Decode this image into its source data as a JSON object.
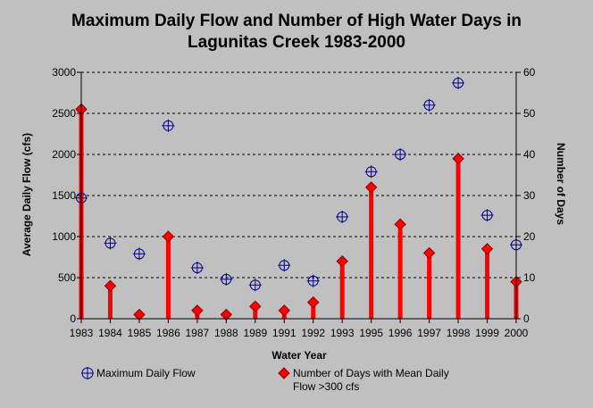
{
  "chart_data": {
    "type": "bar+scatter",
    "title": "Maximum Daily Flow and Number of High Water Days in Lagunitas Creek 1983-2000",
    "title_lines": [
      "Maximum Daily Flow and Number of High Water Days in",
      "Lagunitas Creek 1983-2000"
    ],
    "xlabel": "Water Year",
    "ylabel_left": "Average Daily Flow (cfs)",
    "ylabel_right": "Number of Days",
    "categories": [
      "1983",
      "1984",
      "1985",
      "1986",
      "1987",
      "1988",
      "1989",
      "1991",
      "1992",
      "1993",
      "1995",
      "1996",
      "1997",
      "1998",
      "1999",
      "2000"
    ],
    "ylim_left": [
      0,
      3000
    ],
    "yticks_left": [
      "0",
      "500",
      "1000",
      "1500",
      "2000",
      "2500",
      "3000"
    ],
    "ylim_right": [
      0,
      60
    ],
    "yticks_right": [
      "0",
      "10",
      "20",
      "30",
      "40",
      "50",
      "60"
    ],
    "grid": "horizontal-dashed",
    "series": [
      {
        "name": "Maximum Daily Flow",
        "axis": "left",
        "marker": "circle-cross",
        "color": "#00008b",
        "values": [
          1470,
          920,
          790,
          2350,
          620,
          480,
          410,
          650,
          460,
          1240,
          1790,
          2000,
          2600,
          2870,
          1260,
          900
        ]
      },
      {
        "name": "Number of Days with Mean Daily Flow >300 cfs",
        "axis": "right",
        "marker": "diamond-bar",
        "color": "#ff0000",
        "values": [
          51,
          8,
          1,
          20,
          2,
          1,
          3,
          2,
          4,
          14,
          32,
          23,
          16,
          39,
          17,
          9
        ]
      }
    ]
  },
  "legend": {
    "item1": "Maximum Daily Flow",
    "item2_line1": "Number of Days with Mean Daily",
    "item2_line2": "Flow >300 cfs"
  },
  "colors": {
    "background": "#c0c0c0",
    "flow_marker": "#00008b",
    "days_bar": "#ff0000"
  }
}
